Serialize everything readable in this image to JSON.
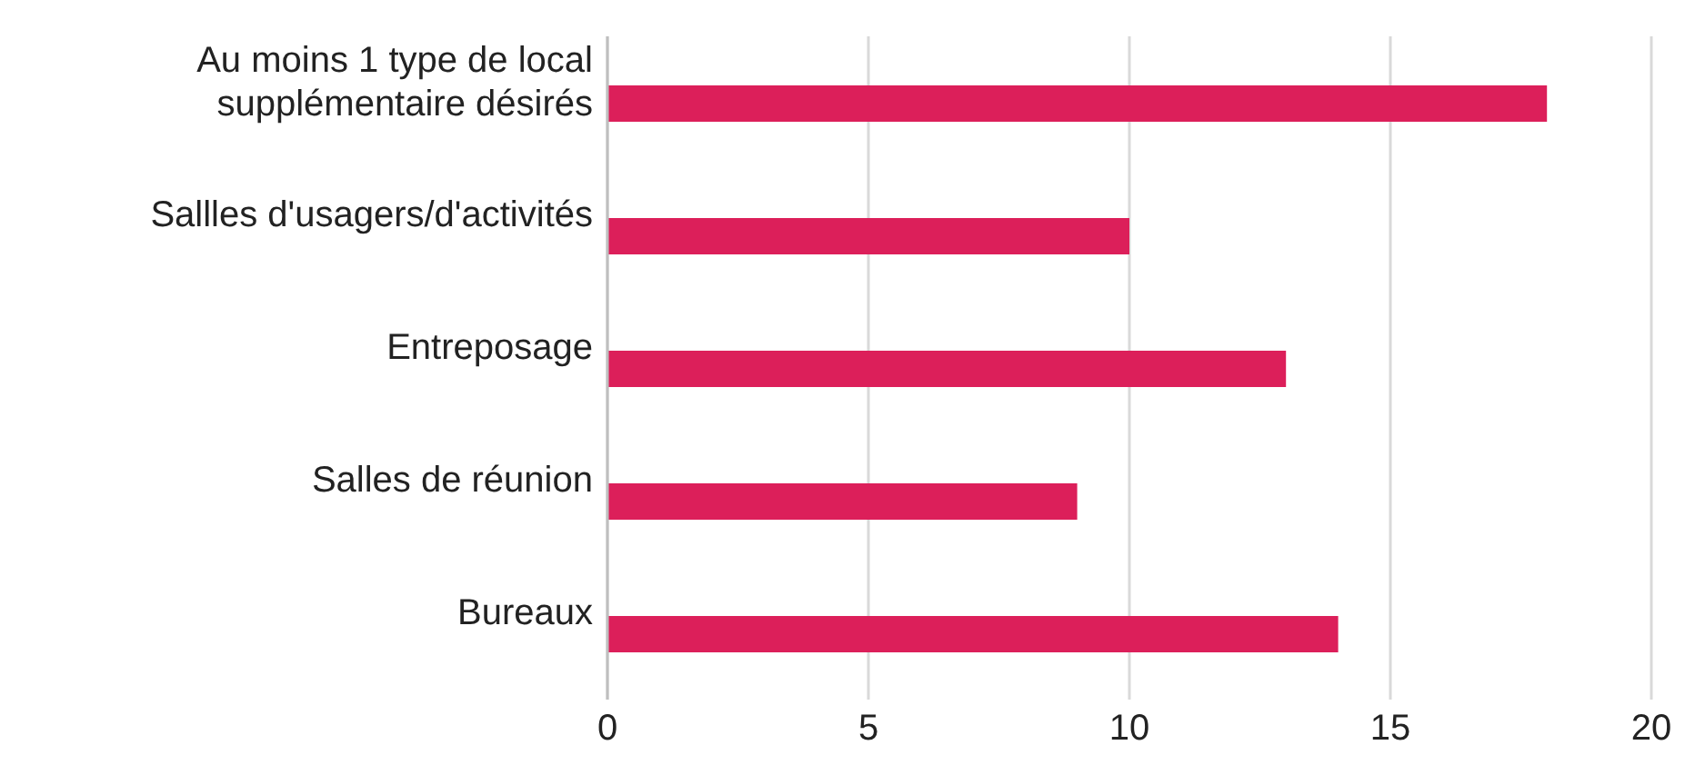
{
  "chart_data": {
    "type": "bar",
    "orientation": "horizontal",
    "categories": [
      "Au moins 1 type de local supplémentaire désirés ",
      "Sallles d'usagers/d'activités",
      "Entreposage",
      "Salles de réunion",
      "Bureaux"
    ],
    "values": [
      18,
      10,
      13,
      9,
      14
    ],
    "color": "#dc1f5a",
    "xlim": [
      0,
      20
    ],
    "xticks": [
      0,
      5,
      10,
      15,
      20
    ],
    "grid": "x"
  }
}
